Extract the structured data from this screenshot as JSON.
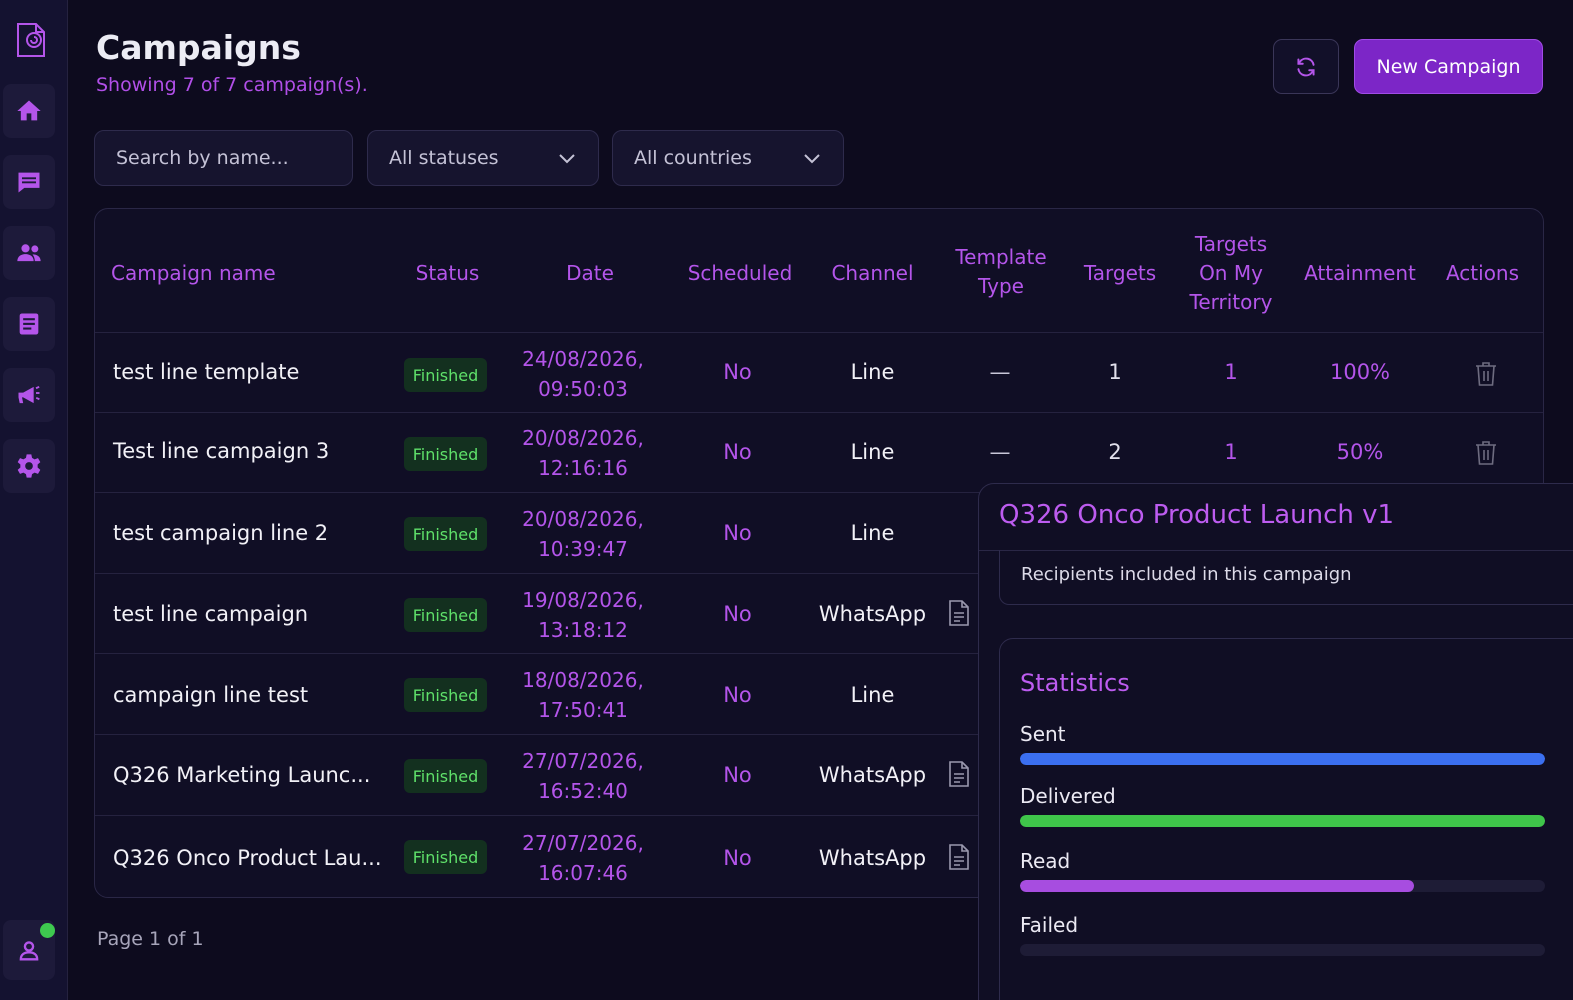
{
  "header": {
    "title": "Campaigns",
    "subtitle": "Showing 7 of 7 campaign(s).",
    "new_button": "New Campaign"
  },
  "filters": {
    "search_placeholder": "Search by name...",
    "status": "All statuses",
    "country": "All countries"
  },
  "table": {
    "columns": {
      "name": "Campaign name",
      "status": "Status",
      "date": "Date",
      "scheduled": "Scheduled",
      "channel": "Channel",
      "template_type_1": "Template",
      "template_type_2": "Type",
      "targets": "Targets",
      "territory_1": "Targets",
      "territory_2": "On My",
      "territory_3": "Territory",
      "attainment": "Attainment",
      "actions": "Actions"
    },
    "rows": [
      {
        "name": "test line template",
        "status": "Finished",
        "date1": "24/08/2026,",
        "date2": "09:50:03",
        "scheduled": "No",
        "channel": "Line",
        "template": "—",
        "targets": "1",
        "territory": "1",
        "attainment": "100%"
      },
      {
        "name": "Test line campaign 3",
        "status": "Finished",
        "date1": "20/08/2026,",
        "date2": "12:16:16",
        "scheduled": "No",
        "channel": "Line",
        "template": "—",
        "targets": "2",
        "territory": "1",
        "attainment": "50%"
      },
      {
        "name": "test campaign line 2",
        "status": "Finished",
        "date1": "20/08/2026,",
        "date2": "10:39:47",
        "scheduled": "No",
        "channel": "Line"
      },
      {
        "name": "test line campaign",
        "status": "Finished",
        "date1": "19/08/2026,",
        "date2": "13:18:12",
        "scheduled": "No",
        "channel": "WhatsApp"
      },
      {
        "name": "campaign line test",
        "status": "Finished",
        "date1": "18/08/2026,",
        "date2": "17:50:41",
        "scheduled": "No",
        "channel": "Line"
      },
      {
        "name": "Q326 Marketing Launc...",
        "status": "Finished",
        "date1": "27/07/2026,",
        "date2": "16:52:40",
        "scheduled": "No",
        "channel": "WhatsApp"
      },
      {
        "name": "Q326 Onco Product Lau...",
        "status": "Finished",
        "date1": "27/07/2026,",
        "date2": "16:07:46",
        "scheduled": "No",
        "channel": "WhatsApp"
      }
    ]
  },
  "pagination": "Page 1 of 1",
  "popover": {
    "title": "Q326 Onco Product Launch v1",
    "recipients": "Recipients included in this campaign",
    "stats_title": "Statistics",
    "stats": [
      {
        "label": "Sent",
        "fraction": 1.0,
        "color": "#3b6ff0"
      },
      {
        "label": "Delivered",
        "fraction": 1.0,
        "color": "#3fc54a"
      },
      {
        "label": "Read",
        "fraction": 0.75,
        "color": "#a74de0"
      },
      {
        "label": "Failed",
        "fraction": 0.0,
        "color": "#e04d4d"
      }
    ]
  },
  "colors": {
    "accent": "#b455ea",
    "button": "#7c26c7",
    "success": "#5fe06a",
    "online": "#3ec94f"
  }
}
